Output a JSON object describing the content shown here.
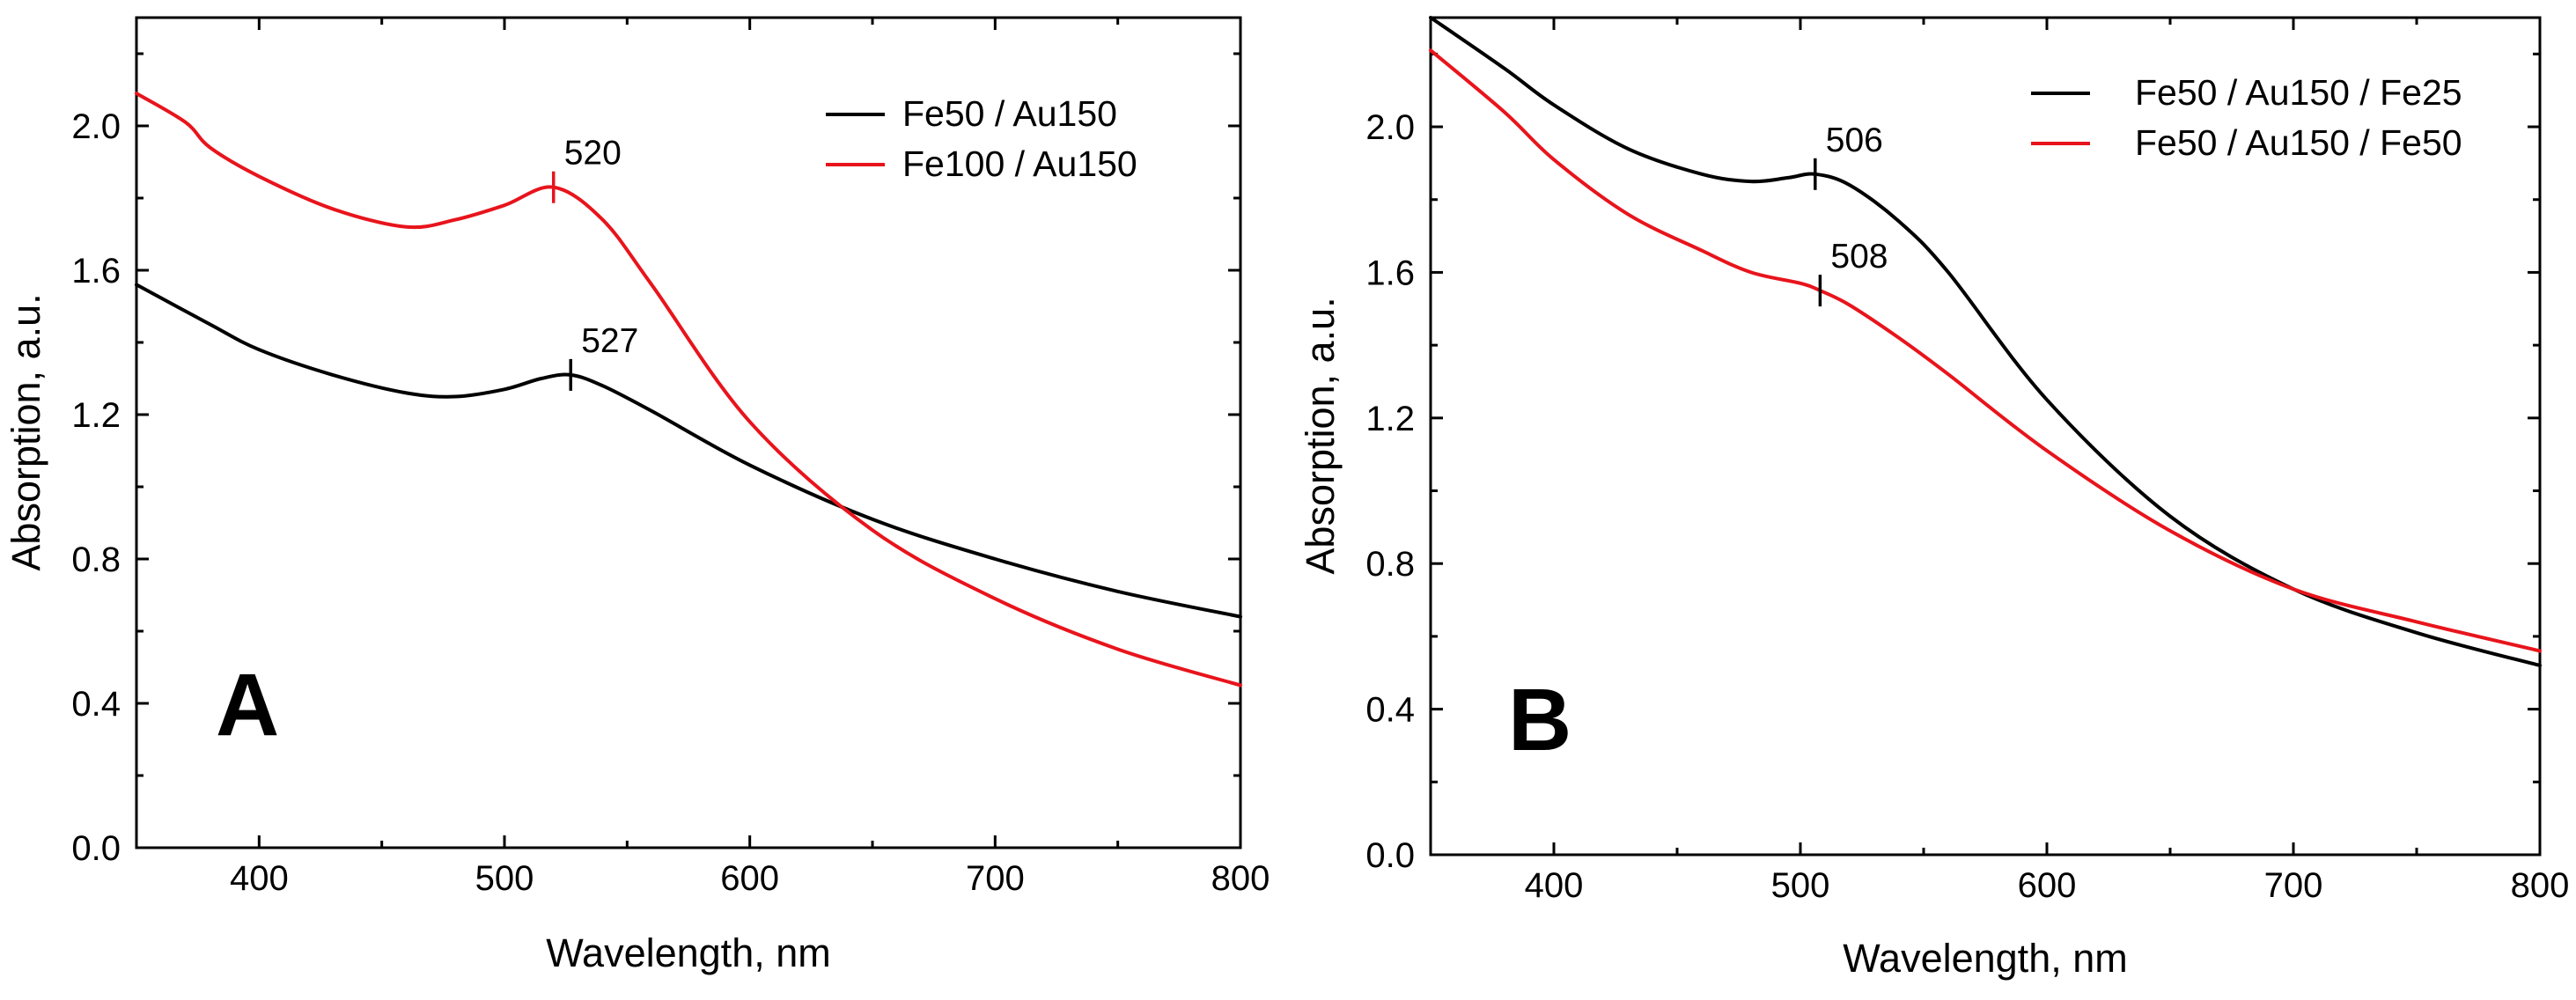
{
  "chart_data": [
    {
      "panel": "A",
      "type": "line",
      "xlabel": "Wavelength, nm",
      "ylabel": "Absorption, a.u.",
      "xlim": [
        350,
        800
      ],
      "ylim": [
        0.0,
        2.3
      ],
      "x_ticks": [
        400,
        500,
        600,
        700,
        800
      ],
      "x_tick_labels": [
        "400",
        "500",
        "600",
        "700",
        "800"
      ],
      "y_ticks": [
        0.0,
        0.4,
        0.8,
        1.2,
        1.6,
        2.0
      ],
      "y_tick_labels": [
        "0.0",
        "0.4",
        "0.8",
        "1.2",
        "1.6",
        "2.0"
      ],
      "legend_position": "top-right",
      "series": [
        {
          "name": "Fe50 / Au150",
          "color": "#000000",
          "x": [
            350,
            380,
            400,
            430,
            460,
            480,
            500,
            515,
            527,
            540,
            560,
            600,
            650,
            700,
            750,
            800
          ],
          "y": [
            1.56,
            1.45,
            1.38,
            1.31,
            1.26,
            1.25,
            1.27,
            1.3,
            1.31,
            1.28,
            1.21,
            1.06,
            0.91,
            0.8,
            0.71,
            0.64
          ]
        },
        {
          "name": "Fe100 / Au150",
          "color": "#e8141c",
          "x": [
            350,
            370,
            380,
            400,
            430,
            460,
            480,
            500,
            520,
            540,
            560,
            600,
            650,
            700,
            750,
            800
          ],
          "y": [
            2.09,
            2.01,
            1.94,
            1.86,
            1.77,
            1.72,
            1.74,
            1.78,
            1.83,
            1.74,
            1.56,
            1.18,
            0.88,
            0.69,
            0.55,
            0.45
          ]
        }
      ],
      "peaks": [
        {
          "series": "Fe100 / Au150",
          "x": 520,
          "y": 1.83,
          "label": "520",
          "color": "#e8141c"
        },
        {
          "series": "Fe50 / Au150",
          "x": 527,
          "y": 1.31,
          "label": "527",
          "color": "#000000"
        }
      ]
    },
    {
      "panel": "B",
      "type": "line",
      "xlabel": "Wavelength, nm",
      "ylabel": "Absorption, a.u.",
      "xlim": [
        350,
        800
      ],
      "ylim": [
        0.0,
        2.3
      ],
      "x_ticks": [
        400,
        500,
        600,
        700,
        800
      ],
      "x_tick_labels": [
        "400",
        "500",
        "600",
        "700",
        "800"
      ],
      "y_ticks": [
        0.0,
        0.4,
        0.8,
        1.2,
        1.6,
        2.0
      ],
      "y_tick_labels": [
        "0.0",
        "0.4",
        "0.8",
        "1.2",
        "1.6",
        "2.0"
      ],
      "legend_position": "top-right",
      "series": [
        {
          "name": "Fe50 / Au150 / Fe25",
          "color": "#000000",
          "x": [
            350,
            380,
            400,
            430,
            460,
            480,
            495,
            506,
            520,
            540,
            560,
            600,
            650,
            700,
            750,
            800
          ],
          "y": [
            2.3,
            2.16,
            2.06,
            1.94,
            1.87,
            1.85,
            1.86,
            1.87,
            1.84,
            1.74,
            1.6,
            1.25,
            0.93,
            0.73,
            0.61,
            0.52
          ]
        },
        {
          "name": "Fe50 / Au150 / Fe50",
          "color": "#e8141c",
          "x": [
            350,
            380,
            400,
            430,
            460,
            480,
            500,
            508,
            520,
            540,
            560,
            600,
            650,
            700,
            750,
            800
          ],
          "y": [
            2.21,
            2.04,
            1.91,
            1.76,
            1.66,
            1.6,
            1.57,
            1.55,
            1.51,
            1.42,
            1.32,
            1.11,
            0.89,
            0.73,
            0.64,
            0.56
          ]
        }
      ],
      "peaks": [
        {
          "series": "Fe50 / Au150 / Fe25",
          "x": 506,
          "y": 1.87,
          "label": "506",
          "color": "#000000"
        },
        {
          "series": "Fe50 / Au150 / Fe50",
          "x": 508,
          "y": 1.55,
          "label": "508",
          "color": "#000000"
        }
      ]
    }
  ]
}
